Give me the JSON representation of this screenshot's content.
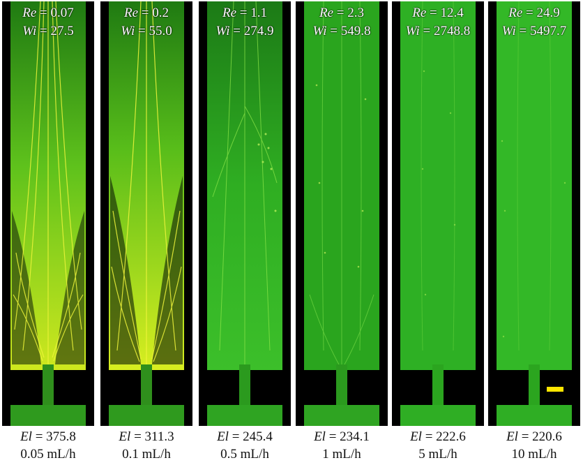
{
  "figure": {
    "panels": [
      {
        "re_label": "Re",
        "re_value": "= 0.07",
        "wi_label": "Wi",
        "wi_value": "= 27.5",
        "el_label": "El",
        "el_value": "= 375.8",
        "flow_rate": "0.05 mL/h",
        "palette": "yellow"
      },
      {
        "re_label": "Re",
        "re_value": "= 0.2",
        "wi_label": "Wi",
        "wi_value": "= 55.0",
        "el_label": "El",
        "el_value": "= 311.3",
        "flow_rate": "0.1 mL/h",
        "palette": "yellow"
      },
      {
        "re_label": "Re",
        "re_value": "= 1.1",
        "wi_label": "Wi",
        "wi_value": "= 274.9",
        "el_label": "El",
        "el_value": "= 245.4",
        "flow_rate": "0.5 mL/h",
        "palette": "green"
      },
      {
        "re_label": "Re",
        "re_value": "= 2.3",
        "wi_label": "Wi",
        "wi_value": "= 549.8",
        "el_label": "El",
        "el_value": "= 234.1",
        "flow_rate": "1 mL/h",
        "palette": "green"
      },
      {
        "re_label": "Re",
        "re_value": "= 12.4",
        "wi_label": "Wi",
        "wi_value": "= 2748.8",
        "el_label": "El",
        "el_value": "= 222.6",
        "flow_rate": "5 mL/h",
        "palette": "green"
      },
      {
        "re_label": "Re",
        "re_value": "= 24.9",
        "wi_label": "Wi",
        "wi_value": "= 5497.7",
        "el_label": "El",
        "el_value": "= 220.6",
        "flow_rate": "10 mL/h",
        "palette": "green"
      }
    ],
    "colors": {
      "background": "#000000",
      "fluid_green": "#2fb82a",
      "fluid_bright_green": "#4fdc3a",
      "streak_yellow": "#e8f53a",
      "scale_bar": "#ffe600",
      "overlay_text": "#ffffff",
      "caption_text": "#111111"
    }
  }
}
